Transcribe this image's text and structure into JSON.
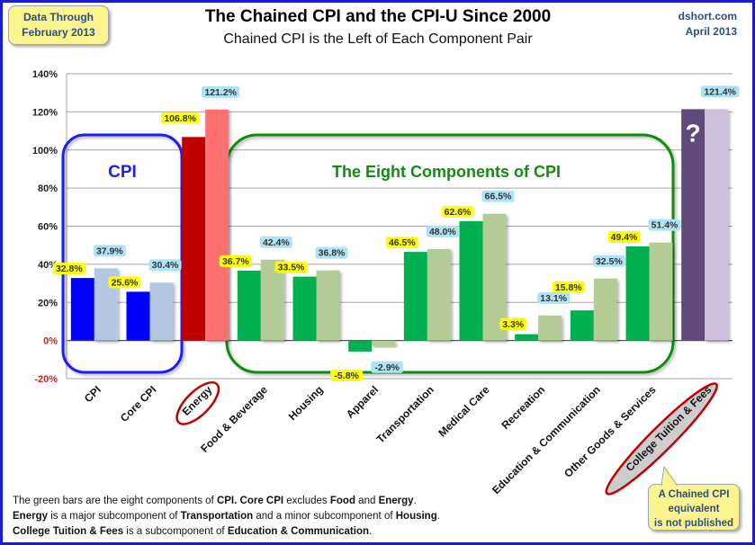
{
  "header": {
    "date_box_line1": "Data Through",
    "date_box_line2": "February 2013",
    "source_line1": "dshort.com",
    "source_line2": "April 2013"
  },
  "chart_data": {
    "type": "bar",
    "title": "The Chained CPI and the CPI-U Since 2000",
    "subtitle": "Chained CPI is the Left of Each Component Pair",
    "xlabel": "",
    "ylabel": "",
    "ylim": [
      -20,
      140
    ],
    "yticks": [
      140,
      120,
      100,
      80,
      60,
      40,
      20,
      0,
      -20
    ],
    "ytick_labels": [
      "140%",
      "120%",
      "100%",
      "80%",
      "60%",
      "40%",
      "20%",
      "0%",
      "-20%"
    ],
    "grid": true,
    "categories": [
      "CPI",
      "Core CPI",
      "Energy",
      "Food & Beverage",
      "Housing",
      "Apparel",
      "Transportation",
      "Medical Care",
      "Recreation",
      "Education & Communication",
      "Other Goods & Services",
      "College Tuition & Fees"
    ],
    "series": [
      {
        "name": "Chained CPI",
        "values": [
          32.8,
          25.6,
          106.8,
          36.7,
          33.5,
          -5.8,
          46.5,
          62.6,
          3.3,
          15.8,
          49.4,
          null
        ]
      },
      {
        "name": "CPI-U",
        "values": [
          37.9,
          30.4,
          121.2,
          42.4,
          36.8,
          -2.9,
          48.0,
          66.5,
          13.1,
          32.5,
          51.4,
          121.4
        ]
      }
    ],
    "data_labels": {
      "chained": [
        "32.8%",
        "25.6%",
        "106.8%",
        "36.7%",
        "33.5%",
        "-5.8%",
        "46.5%",
        "62.6%",
        "3.3%",
        "15.8%",
        "49.4%",
        ""
      ],
      "cpi_u": [
        "37.9%",
        "30.4%",
        "121.2%",
        "42.4%",
        "36.8%",
        "-2.9%",
        "48.0%",
        "66.5%",
        "13.1%",
        "32.5%",
        "51.4%",
        "121.4%"
      ]
    },
    "group_colors": {
      "cpi": [
        "#0000ff",
        "#b4c7e3"
      ],
      "energy": [
        "#c00000",
        "#ff7070"
      ],
      "components": [
        "#00b050",
        "#b3cb94"
      ],
      "tuition": [
        "#604a7b",
        "#ccc0da"
      ]
    },
    "annotations": {
      "cpi_group_label": "CPI",
      "components_group_label": "The Eight Components of CPI",
      "tuition_unknown_mark": "?",
      "highlighted_categories": [
        "Energy",
        "College Tuition & Fees"
      ]
    },
    "legend": "none"
  },
  "footer": {
    "line1": [
      {
        "t": "The green bars are the eight components of ",
        "b": false
      },
      {
        "t": "CPI. Core CPI",
        "b": true
      },
      {
        "t": " excludes ",
        "b": false
      },
      {
        "t": "Food",
        "b": true
      },
      {
        "t": " and ",
        "b": false
      },
      {
        "t": "Energy",
        "b": true
      },
      {
        "t": ".",
        "b": false
      }
    ],
    "line2": [
      {
        "t": "Energy",
        "b": true
      },
      {
        "t": " is a  major subcomponent of ",
        "b": false
      },
      {
        "t": "Transportation",
        "b": true
      },
      {
        "t": " and a minor subcomponent of ",
        "b": false
      },
      {
        "t": "Housing",
        "b": true
      },
      {
        "t": ".",
        "b": false
      }
    ],
    "line3": [
      {
        "t": "College Tuition & Fees",
        "b": true
      },
      {
        "t": " is a subcomponent of ",
        "b": false
      },
      {
        "t": "Education & Communication",
        "b": true
      },
      {
        "t": ".",
        "b": false
      }
    ]
  },
  "callout": {
    "line1": "A Chained CPI",
    "line2": "equivalent",
    "line3": "is not published"
  }
}
